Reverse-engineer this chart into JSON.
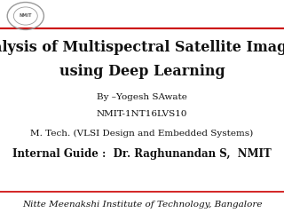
{
  "bg_color": "#ffffff",
  "title_line1": "Analysis of Multispectral Satellite Imagery",
  "title_line2": "using Deep Learning",
  "by_line": "By –Yogesh SAwate",
  "id_line": "NMIT-1NT16LVS10",
  "mtech_line": "M. Tech. (VLSI Design and Embedded Systems)",
  "guide_label": "Internal Guide :  ",
  "guide_name": "Dr. Raghunandan S,  NMIT",
  "footer": "Nitte Meenakshi Institute of Technology, Bangalore",
  "red_line_color": "#cc0000",
  "title_fontsize": 11.5,
  "body_fontsize": 7.5,
  "guide_fontsize": 8.5,
  "footer_fontsize": 7.5
}
